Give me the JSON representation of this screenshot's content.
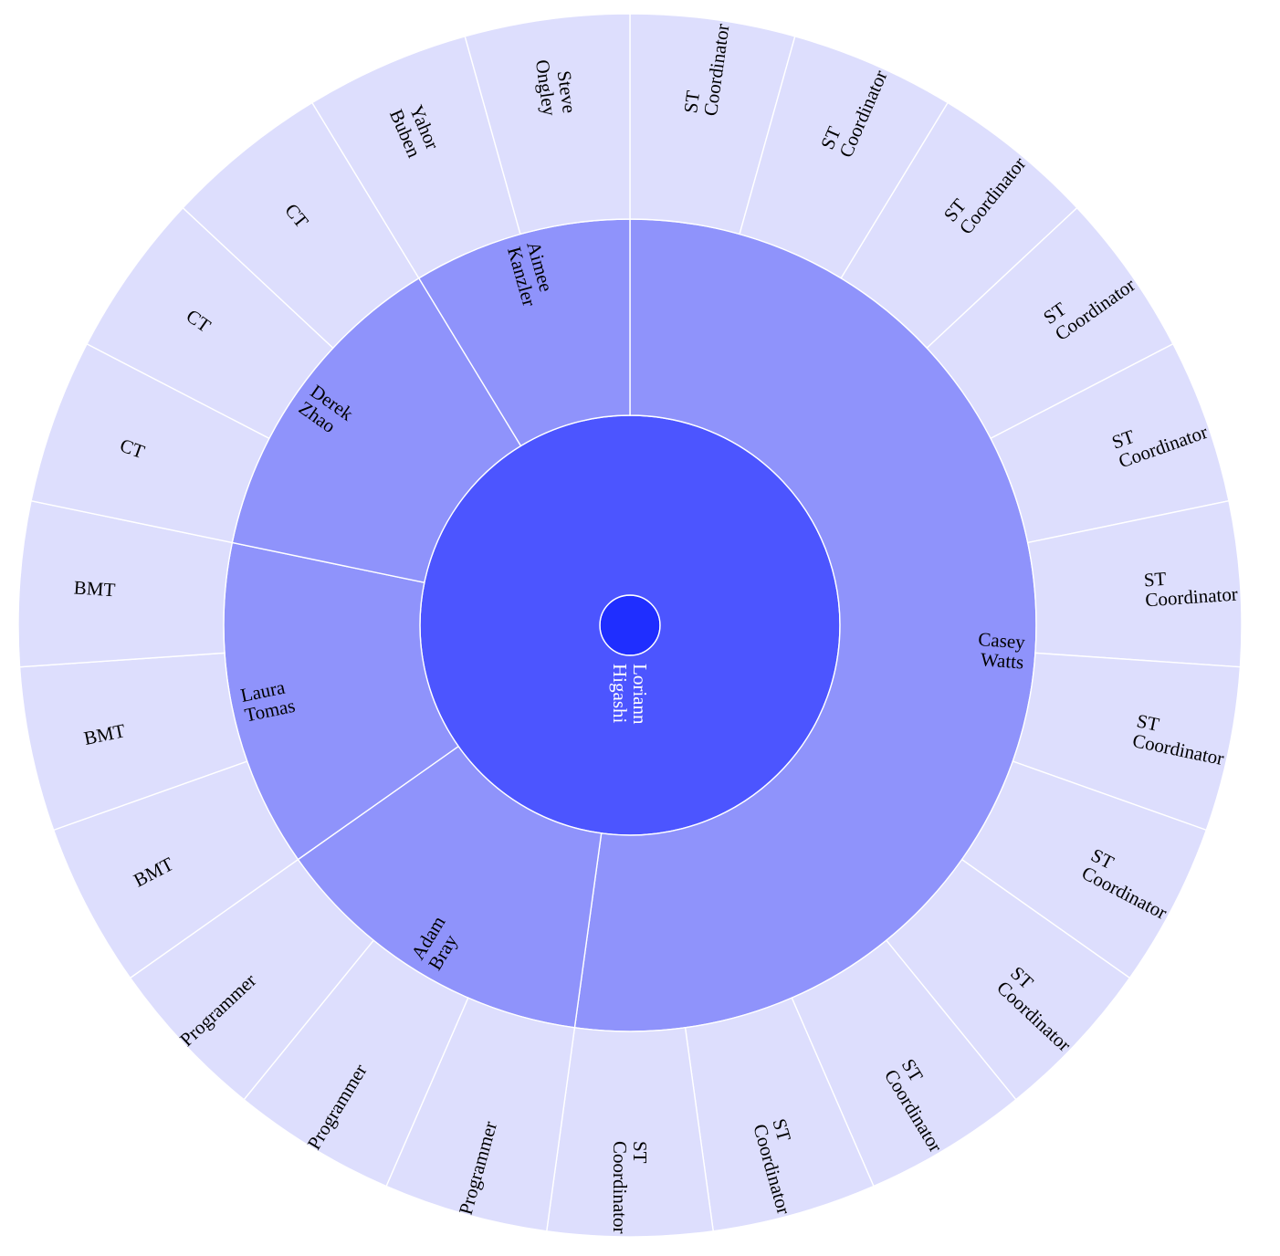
{
  "chart_data": {
    "type": "sunburst",
    "title": "",
    "colors": {
      "level0": "#1f2eff",
      "level1": "#4c55ff",
      "level2": "#8f93fb",
      "level3": "#dddefd",
      "label_dark": "#000000",
      "label_light": "#ffffff",
      "stroke": "#ffffff"
    },
    "root": {
      "name": "Loriann Higashi",
      "children": [
        {
          "name": "Loriann Higashi",
          "children": [
            {
              "name": "Casey Watts",
              "children": [
                {
                  "name": "ST Coordinator",
                  "value": 1
                },
                {
                  "name": "ST Coordinator",
                  "value": 1
                },
                {
                  "name": "ST Coordinator",
                  "value": 1
                },
                {
                  "name": "ST Coordinator",
                  "value": 1
                },
                {
                  "name": "ST Coordinator",
                  "value": 1
                },
                {
                  "name": "ST Coordinator",
                  "value": 1
                },
                {
                  "name": "ST Coordinator",
                  "value": 1
                },
                {
                  "name": "ST Coordinator",
                  "value": 1
                },
                {
                  "name": "ST Coordinator",
                  "value": 1
                },
                {
                  "name": "ST Coordinator",
                  "value": 1
                },
                {
                  "name": "ST Coordinator",
                  "value": 1
                },
                {
                  "name": "ST Coordinator",
                  "value": 1
                }
              ]
            },
            {
              "name": "Adam Bray",
              "children": [
                {
                  "name": "Programmer",
                  "value": 1
                },
                {
                  "name": "Programmer",
                  "value": 1
                },
                {
                  "name": "Programmer",
                  "value": 1
                }
              ]
            },
            {
              "name": "Laura Tomas",
              "children": [
                {
                  "name": "BMT",
                  "value": 1
                },
                {
                  "name": "BMT",
                  "value": 1
                },
                {
                  "name": "BMT",
                  "value": 1
                }
              ]
            },
            {
              "name": "Derek Zhao",
              "children": [
                {
                  "name": "CT",
                  "value": 1
                },
                {
                  "name": "CT",
                  "value": 1
                },
                {
                  "name": "CT",
                  "value": 1
                }
              ]
            },
            {
              "name": "Aimee Kanzler",
              "children": [
                {
                  "name": "Yahor Buben",
                  "value": 1
                },
                {
                  "name": "Steve Ongley",
                  "value": 1
                }
              ]
            }
          ]
        }
      ]
    }
  }
}
